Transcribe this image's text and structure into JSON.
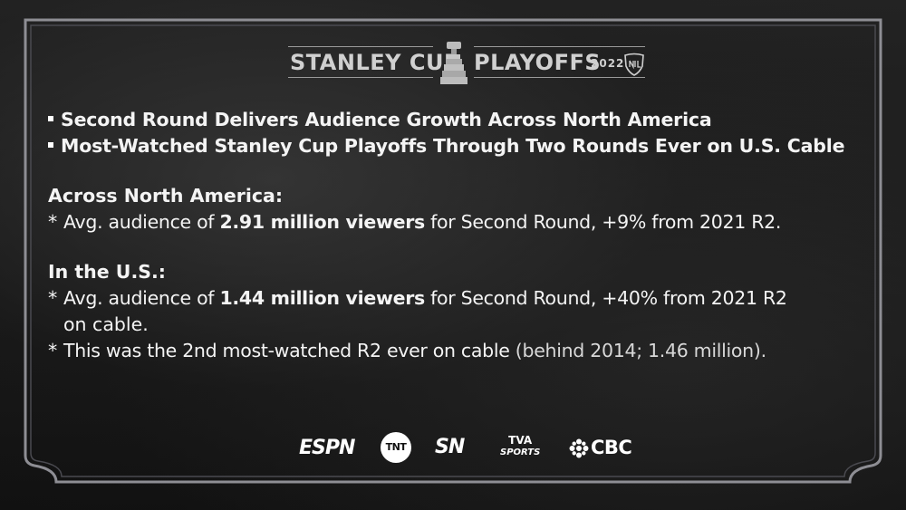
{
  "header": {
    "left_text": "STANLEY CUP",
    "right_text": "PLAYOFFS",
    "year": "2022",
    "icons": [
      "stanley-cup-trophy-icon",
      "nhl-shield-icon"
    ]
  },
  "bullets": [
    "Second Round Delivers Audience Growth Across North America",
    "Most-Watched Stanley Cup Playoffs Through Two Rounds Ever on U.S. Cable"
  ],
  "north_america": {
    "heading": "Across North America:",
    "line1": {
      "star": "*",
      "pre": "Avg. audience of ",
      "bold": "2.91 million viewers",
      "post": " for Second Round, +9% from 2021 R2."
    }
  },
  "us": {
    "heading": "In the U.S.:",
    "line1": {
      "star": "*",
      "pre": "Avg. audience of ",
      "bold": "1.44 million viewers",
      "post": " for Second Round, +40% from 2021 R2",
      "cont": "on cable."
    },
    "line2": {
      "star": "*",
      "main": "This was the 2nd most-watched R2 ever on cable",
      "light": " (behind 2014; 1.46 million)."
    }
  },
  "broadcasters": {
    "espn": "ESPN",
    "tnt": "TNT",
    "sn": "SN",
    "tva": "TVA",
    "tva_sub": "SPORTS",
    "cbc": "CBC"
  },
  "colors": {
    "background": "#1a1a1a",
    "frame": "#9a9aa0",
    "text": "#ffffff",
    "header_text": "#d0d0d0"
  }
}
